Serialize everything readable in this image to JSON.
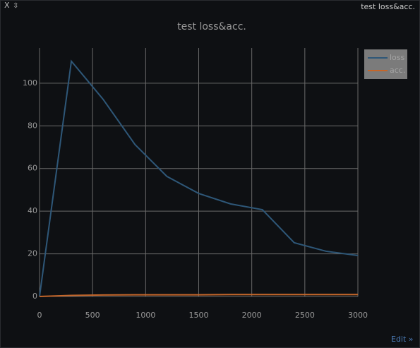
{
  "window": {
    "close": "X",
    "icon": "⇳",
    "caption": "test loss&acc.",
    "edit": "Edit »"
  },
  "chart_data": {
    "type": "line",
    "title": "test loss&acc.",
    "x": [
      0,
      300,
      600,
      900,
      1200,
      1500,
      1800,
      2100,
      2400,
      2700,
      3000
    ],
    "series": [
      {
        "name": "loss",
        "color": "#2e5778",
        "values": [
          0,
          110.3,
          92.4,
          71.2,
          56.3,
          48.3,
          43.4,
          40.7,
          25.2,
          21.2,
          19.2
        ]
      },
      {
        "name": "acc.",
        "color": "#c4662a",
        "values": [
          0,
          0.5,
          0.7,
          0.8,
          0.8,
          0.8,
          0.9,
          0.9,
          0.9,
          0.9,
          0.9
        ]
      }
    ],
    "xlim": [
      0,
      3000
    ],
    "xticks": [
      0,
      500,
      1000,
      1500,
      2000,
      2500,
      3000
    ],
    "ylim": [
      0,
      116.5
    ],
    "yticks": [
      0,
      20,
      40,
      60,
      80,
      100
    ],
    "grid": true,
    "legend": "top-right"
  }
}
